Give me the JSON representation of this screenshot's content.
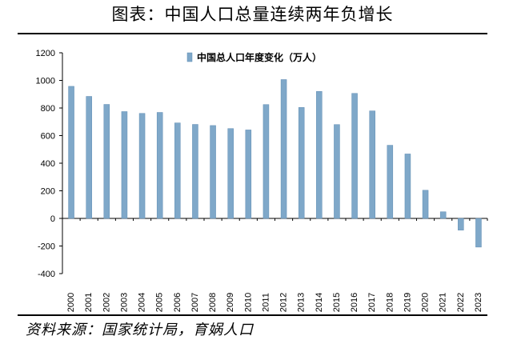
{
  "chart_data": {
    "type": "bar",
    "title": "图表：中国人口总量连续两年负增长",
    "source": "资料来源：国家统计局，育娲人口",
    "legend": "中国总人口年度变化（万人）",
    "legend_position": "top-center",
    "bar_color": "#7fa8c9",
    "categories": [
      "2000",
      "2001",
      "2002",
      "2003",
      "2004",
      "2005",
      "2006",
      "2007",
      "2008",
      "2009",
      "2010",
      "2011",
      "2012",
      "2013",
      "2014",
      "2015",
      "2016",
      "2017",
      "2018",
      "2019",
      "2020",
      "2021",
      "2022",
      "2023"
    ],
    "values": [
      957,
      884,
      826,
      774,
      761,
      768,
      692,
      681,
      673,
      651,
      641,
      825,
      1006,
      804,
      920,
      680,
      906,
      779,
      530,
      467,
      204,
      48,
      -85,
      -208
    ],
    "ylim": [
      -400,
      1200
    ],
    "yticks": [
      -400,
      -200,
      0,
      200,
      400,
      600,
      800,
      1000,
      1200
    ],
    "xlabel": "",
    "ylabel": ""
  }
}
